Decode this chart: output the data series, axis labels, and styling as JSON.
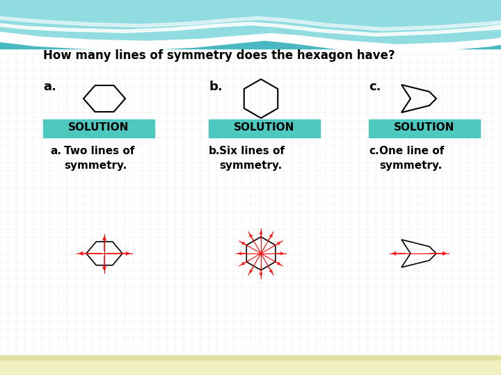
{
  "title": "How many lines of symmetry does the hexagon have?",
  "title_fontsize": 12,
  "bg_color": "#f5f5f5",
  "solution_bg": "#4dc9bf",
  "solution_text": "SOLUTION",
  "solution_fontsize": 11,
  "labels_abc": [
    "a.",
    "b.",
    "c."
  ],
  "answer_fontsize": 11,
  "teal_dark": "#4ab8c0",
  "teal_mid": "#6dcdd4",
  "teal_light": "#90dce0",
  "footer_color": "#f0f0c0",
  "footer_line": "#e0e0a0"
}
